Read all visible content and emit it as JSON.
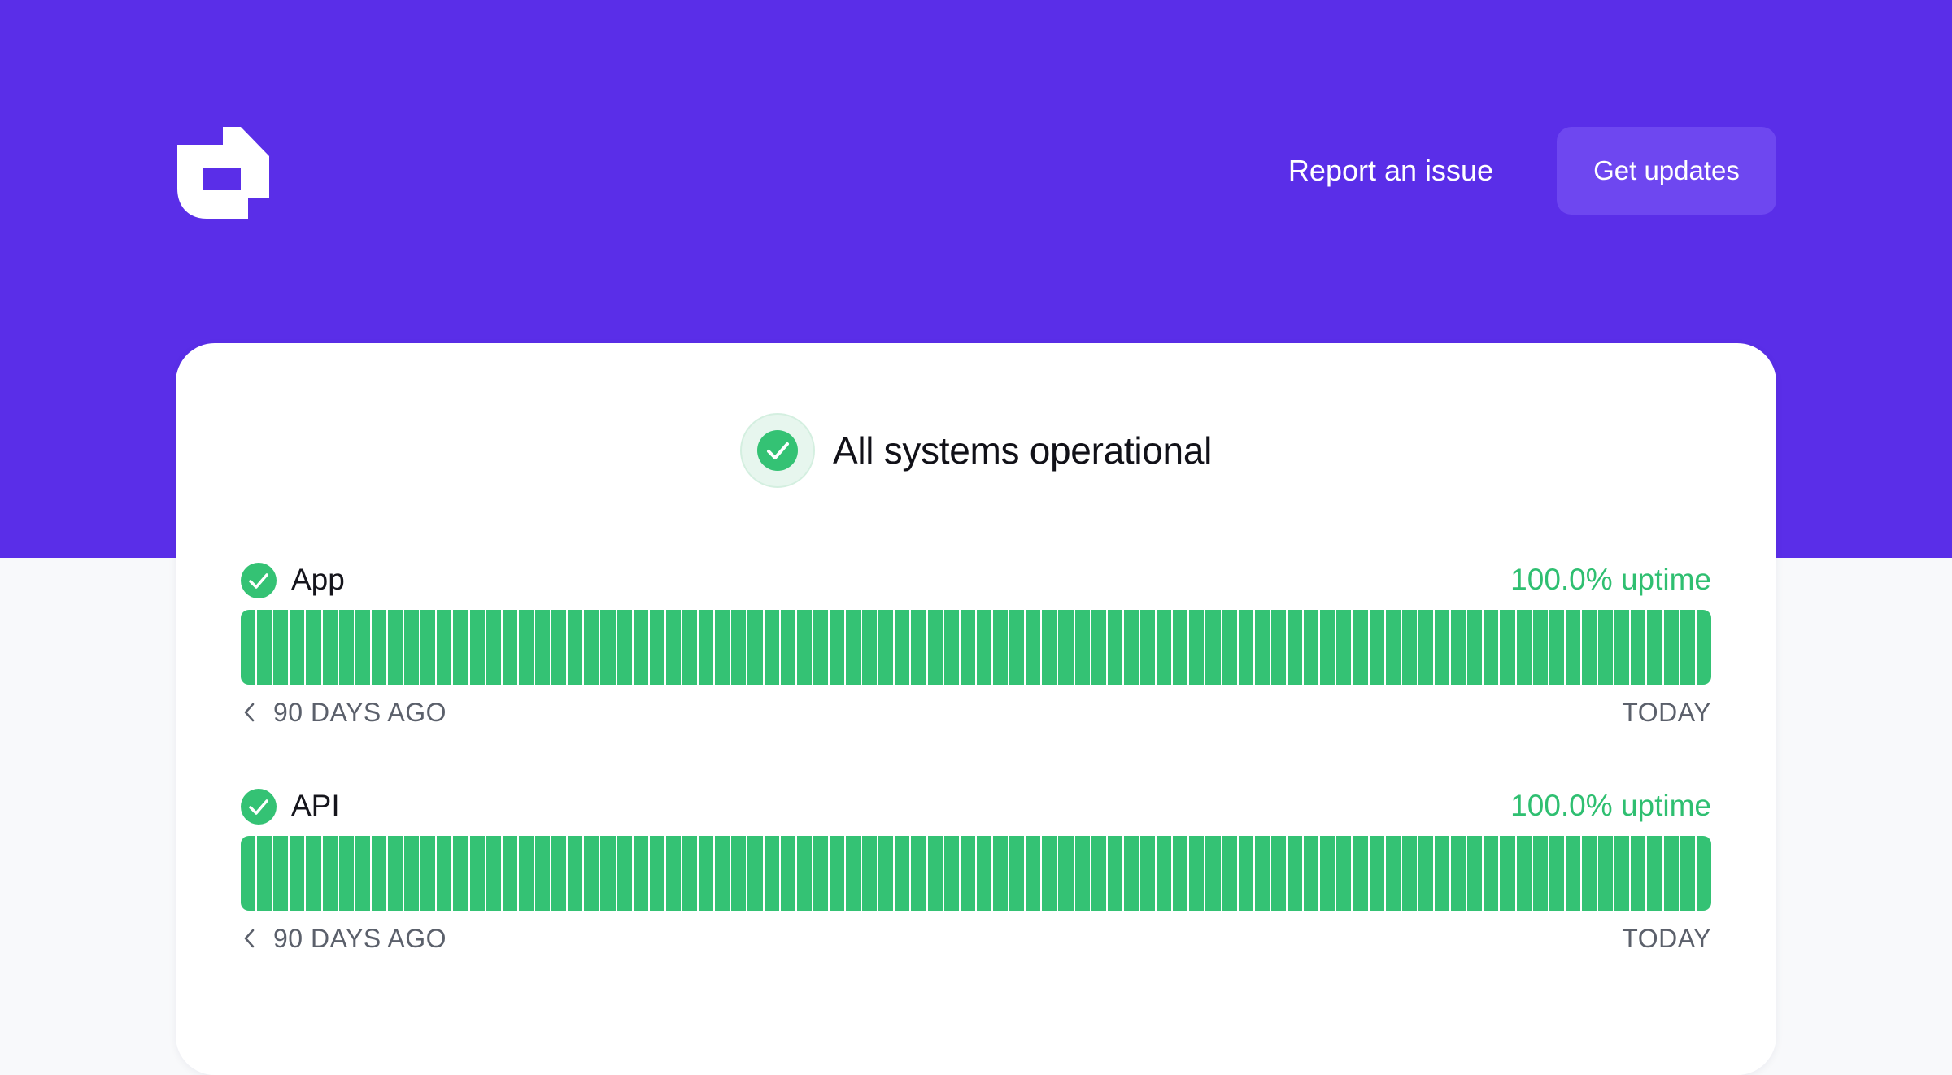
{
  "brand": {
    "logo_icon": "statuspage-logo-icon",
    "header_color": "#5a2ee8",
    "accent_green": "#34c274"
  },
  "header": {
    "report_label": "Report an issue",
    "updates_label": "Get updates"
  },
  "overall_status": {
    "icon": "check-circle-icon",
    "text": "All systems operational"
  },
  "components": [
    {
      "name": "App",
      "uptime": "100.0% uptime",
      "days": 90,
      "operational_fraction": 1.0,
      "range_start": "90 DAYS AGO",
      "range_end": "TODAY"
    },
    {
      "name": "API",
      "uptime": "100.0% uptime",
      "days": 90,
      "operational_fraction": 1.0,
      "range_start": "90 DAYS AGO",
      "range_end": "TODAY"
    }
  ]
}
